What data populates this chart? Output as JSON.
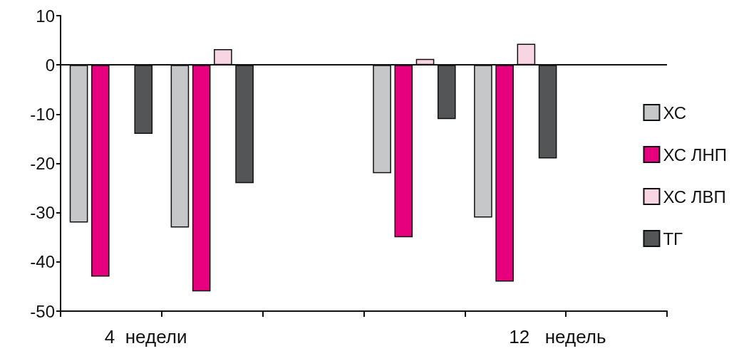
{
  "chart_data": {
    "type": "bar",
    "categories": [
      null,
      null,
      null,
      null,
      null,
      null
    ],
    "series": [
      {
        "name": "ХС",
        "color": "#c6c7c9",
        "values": [
          -32,
          -33,
          null,
          -22,
          -31,
          null
        ]
      },
      {
        "name": "ХС ЛНП",
        "color": "#e6007e",
        "values": [
          -43,
          -46,
          null,
          -35,
          -44,
          null
        ]
      },
      {
        "name": "ХС ЛВП",
        "color": "#f8d5e3",
        "values": [
          null,
          3.2,
          null,
          1.2,
          4.3,
          null
        ]
      },
      {
        "name": "ТГ",
        "color": "#545557",
        "values": [
          -14,
          -24,
          null,
          -11,
          -19,
          null
        ]
      }
    ],
    "annotations": [
      "4  недели",
      "12   недель"
    ],
    "ylim": [
      -50,
      10
    ],
    "yticks": [
      -50,
      -40,
      -30,
      -20,
      -10,
      0,
      10
    ],
    "grid": false,
    "ref_lines": [
      {
        "axis": "y",
        "value": 0
      }
    ],
    "legend": "right"
  }
}
